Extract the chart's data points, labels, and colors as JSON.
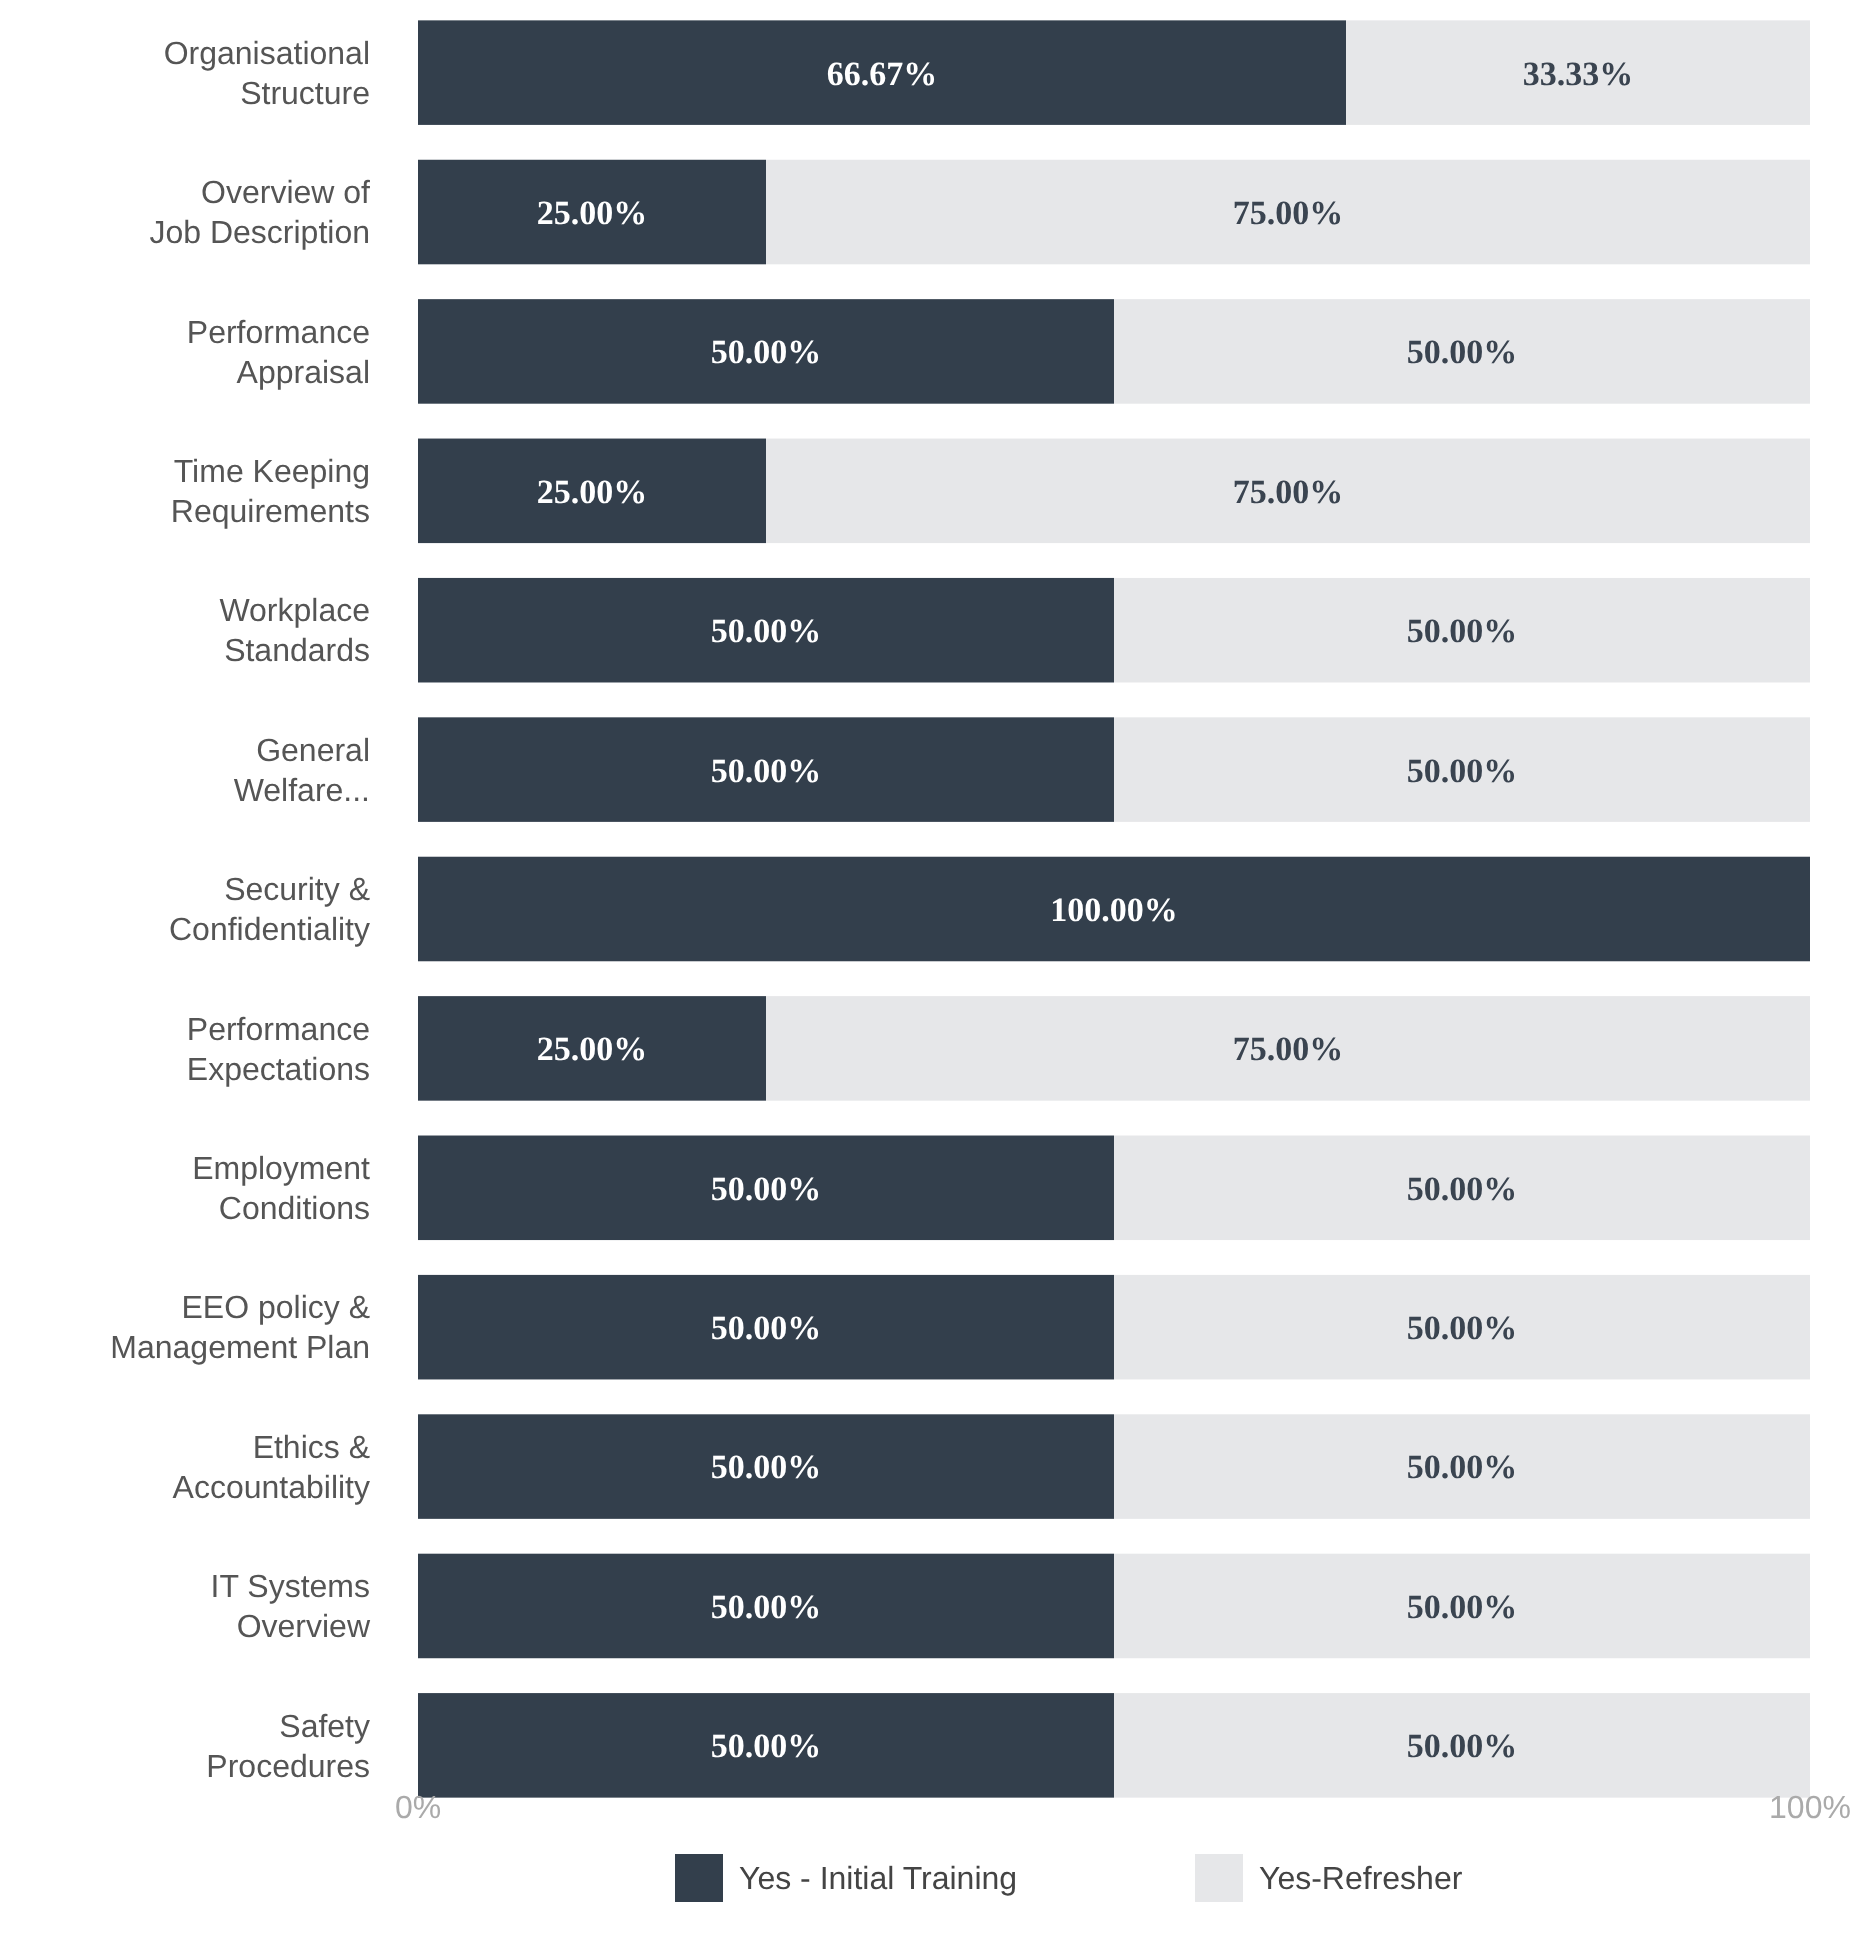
{
  "chart_data": {
    "type": "bar",
    "orientation": "horizontal",
    "stacked": true,
    "categories": [
      "Organisational Structure",
      "Overview of Job Description",
      "Performance Appraisal",
      "Time Keeping Requirements",
      "Workplace Standards",
      "General Welfare...",
      "Security & Confidentiality",
      "Performance Expectations",
      "Employment Conditions",
      "EEO policy & Management Plan",
      "Ethics & Accountability",
      "IT Systems Overview",
      "Safety Procedures"
    ],
    "series": [
      {
        "name": "Yes - Initial Training",
        "color": "#333f4c",
        "values": [
          66.67,
          25,
          50,
          25,
          50,
          50,
          100,
          25,
          50,
          50,
          50,
          50,
          50
        ],
        "value_labels": [
          "66.67%",
          "25.00%",
          "50.00%",
          "25.00%",
          "50.00%",
          "50.00%",
          "100.00%",
          "25.00%",
          "50.00%",
          "50.00%",
          "50.00%",
          "50.00%",
          "50.00%"
        ]
      },
      {
        "name": "Yes-Refresher",
        "color": "#e6e7e9",
        "values": [
          33.33,
          75,
          50,
          75,
          50,
          50,
          0,
          75,
          50,
          50,
          50,
          50,
          50
        ],
        "value_labels": [
          "33.33%",
          "75.00%",
          "50.00%",
          "75.00%",
          "50.00%",
          "50.00%",
          null,
          "75.00%",
          "50.00%",
          "50.00%",
          "50.00%",
          "50.00%",
          "50.00%"
        ]
      }
    ],
    "xlim": [
      0,
      100
    ],
    "xticks": [
      {
        "value": 0,
        "label": "0%"
      },
      {
        "value": 100,
        "label": "100%"
      }
    ],
    "grid": false,
    "legend": "bottom"
  }
}
